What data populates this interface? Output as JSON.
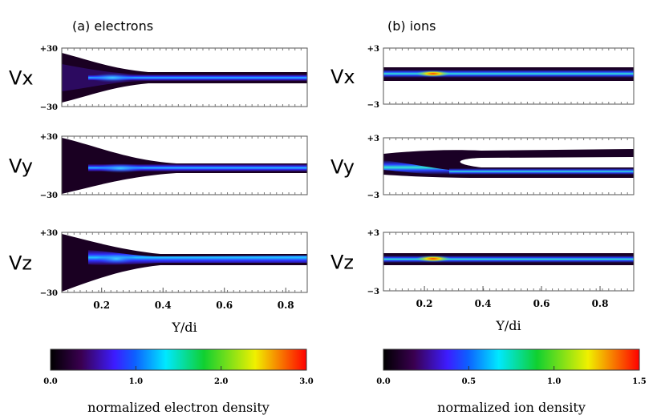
{
  "chart_data": [
    {
      "type": "heatmap",
      "title": "(a) electrons",
      "ylabel": "Vx",
      "ylim": [
        -30,
        30
      ],
      "yticks": [
        {
          "value": -30,
          "label": "−30"
        },
        {
          "value": 30,
          "label": "+30"
        }
      ],
      "xlim": [
        0.07,
        0.87
      ]
    },
    {
      "type": "heatmap",
      "ylabel": "Vy",
      "ylim": [
        -30,
        30
      ],
      "yticks": [
        {
          "value": -30,
          "label": "−30"
        },
        {
          "value": 30,
          "label": "+30"
        }
      ],
      "xlim": [
        0.07,
        0.87
      ]
    },
    {
      "type": "heatmap",
      "ylabel": "Vz",
      "ylim": [
        -30,
        30
      ],
      "yticks": [
        {
          "value": -30,
          "label": "−30"
        },
        {
          "value": 30,
          "label": "+30"
        }
      ],
      "xlim": [
        0.07,
        0.87
      ],
      "xticks": [
        0.2,
        0.4,
        0.6,
        0.8
      ],
      "xlabel": "Y/di"
    },
    {
      "type": "heatmap",
      "title": "(b) ions",
      "ylabel": "Vx",
      "ylim": [
        -3,
        3
      ],
      "yticks": [
        {
          "value": -3,
          "label": "−3"
        },
        {
          "value": 3,
          "label": "+3"
        }
      ],
      "xlim": [
        0.06,
        0.915
      ]
    },
    {
      "type": "heatmap",
      "ylabel": "Vy",
      "ylim": [
        -3,
        3
      ],
      "yticks": [
        {
          "value": -3,
          "label": "−3"
        },
        {
          "value": 3,
          "label": "+3"
        }
      ],
      "xlim": [
        0.06,
        0.915
      ]
    },
    {
      "type": "heatmap",
      "ylabel": "Vz",
      "ylim": [
        -3,
        3
      ],
      "yticks": [
        {
          "value": -3,
          "label": "−3"
        },
        {
          "value": 3,
          "label": "+3"
        }
      ],
      "xlim": [
        0.06,
        0.915
      ],
      "xticks": [
        0.2,
        0.4,
        0.6,
        0.8
      ],
      "xlabel": "Y/di"
    },
    {
      "type": "colorbar",
      "clim": [
        0,
        3
      ],
      "ticks": [
        {
          "value": 0,
          "label": "0.0"
        },
        {
          "value": 1,
          "label": "1.0"
        },
        {
          "value": 2,
          "label": "2.0"
        },
        {
          "value": 3,
          "label": "3.0"
        }
      ],
      "label": "normalized electron density"
    },
    {
      "type": "colorbar",
      "clim": [
        0,
        1.5
      ],
      "ticks": [
        {
          "value": 0,
          "label": "0.0"
        },
        0.5,
        {
          "value": 1,
          "label": "1.0"
        },
        1.5
      ],
      "label": "normalized ion density"
    }
  ]
}
